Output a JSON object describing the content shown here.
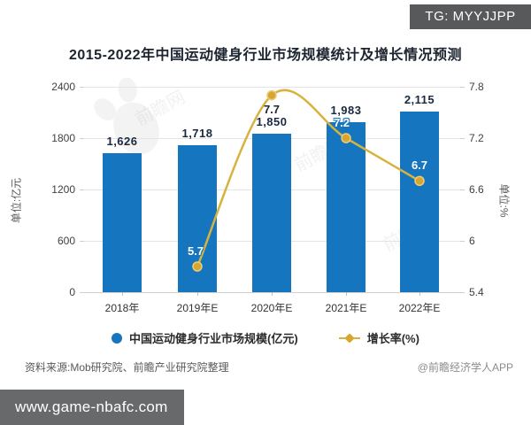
{
  "badges": {
    "tg": "TG: MYYJJPP",
    "site": "www.game-nbafc.com"
  },
  "title": "2015-2022年中国运动健身行业市场规模统计及增长情况预测",
  "footer": {
    "source": "资料来源:Mob研究院、前瞻产业研究院整理",
    "credit": "@前瞻经济学人APP"
  },
  "watermark": {
    "brand": "前瞻网"
  },
  "chart_data": {
    "type": "bar",
    "subtype": "bar+line combo",
    "title": "2015-2022年中国运动健身行业市场规模统计及增长情况预测",
    "categories": [
      "2018年",
      "2019年E",
      "2020年E",
      "2021年E",
      "2022年E"
    ],
    "series": [
      {
        "name": "中国运动健身行业市场规模(亿元)",
        "type": "bar",
        "axis": "left",
        "color": "#1576bf",
        "values": [
          1626,
          1718,
          1850,
          1983,
          2115
        ],
        "labels": [
          "1,626",
          "1,718",
          "1,850",
          "1,983",
          "2,115"
        ]
      },
      {
        "name": "增长率(%)",
        "type": "line",
        "axis": "right",
        "color": "#d8b23e",
        "values": [
          null,
          5.7,
          7.7,
          7.2,
          6.7
        ],
        "labels": [
          "",
          "5.7",
          "7.7",
          "7.2",
          "6.7"
        ]
      }
    ],
    "left_axis": {
      "label": "单位:亿元",
      "ticks": [
        "0",
        "600",
        "1200",
        "1800",
        "2400"
      ],
      "tick_values": [
        0,
        600,
        1200,
        1800,
        2400
      ],
      "range": [
        0,
        2400
      ]
    },
    "right_axis": {
      "label": "单位:%",
      "ticks": [
        "5.4",
        "6",
        "6.6",
        "7.2",
        "7.8"
      ],
      "tick_values": [
        5.4,
        6,
        6.6,
        7.2,
        7.8
      ],
      "range": [
        5.4,
        7.8
      ]
    },
    "legend": [
      "中国运动健身行业市场规模(亿元)",
      "增长率(%)"
    ],
    "legend_position": "bottom",
    "grid": true
  }
}
